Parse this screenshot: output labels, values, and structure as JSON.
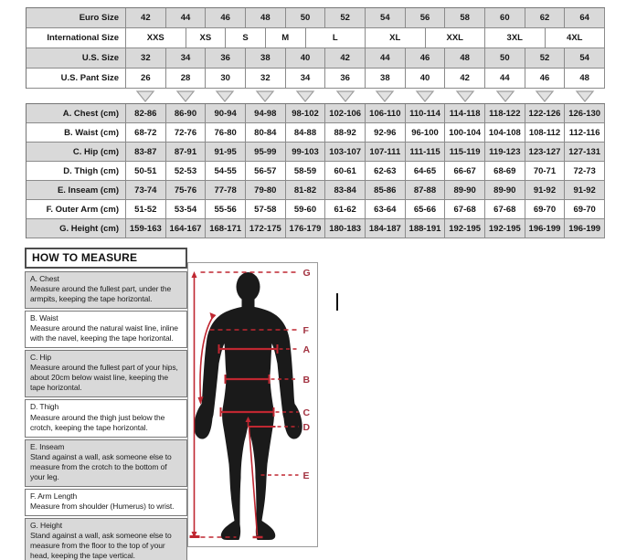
{
  "size_table": {
    "rows": [
      {
        "label": "Euro Size",
        "values": [
          "42",
          "44",
          "46",
          "48",
          "50",
          "52",
          "54",
          "56",
          "58",
          "60",
          "62",
          "64"
        ]
      },
      {
        "label": "International Size",
        "values": [
          "XXS",
          "XS",
          "S",
          "M",
          "L",
          "XL",
          "XXL",
          "3XL",
          "4XL"
        ],
        "spans": [
          3,
          2,
          2,
          2,
          3,
          3,
          3,
          3,
          3
        ]
      },
      {
        "label": "U.S. Size",
        "values": [
          "32",
          "34",
          "36",
          "38",
          "40",
          "42",
          "44",
          "46",
          "48",
          "50",
          "52",
          "54"
        ]
      },
      {
        "label": "U.S. Pant Size",
        "values": [
          "26",
          "28",
          "30",
          "32",
          "34",
          "36",
          "38",
          "40",
          "42",
          "44",
          "46",
          "48"
        ]
      }
    ]
  },
  "measurement_table": {
    "rows": [
      {
        "label": "A. Chest (cm)",
        "values": [
          "82-86",
          "86-90",
          "90-94",
          "94-98",
          "98-102",
          "102-106",
          "106-110",
          "110-114",
          "114-118",
          "118-122",
          "122-126",
          "126-130"
        ]
      },
      {
        "label": "B. Waist (cm)",
        "values": [
          "68-72",
          "72-76",
          "76-80",
          "80-84",
          "84-88",
          "88-92",
          "92-96",
          "96-100",
          "100-104",
          "104-108",
          "108-112",
          "112-116"
        ]
      },
      {
        "label": "C. Hip (cm)",
        "values": [
          "83-87",
          "87-91",
          "91-95",
          "95-99",
          "99-103",
          "103-107",
          "107-111",
          "111-115",
          "115-119",
          "119-123",
          "123-127",
          "127-131"
        ]
      },
      {
        "label": "D. Thigh (cm)",
        "values": [
          "50-51",
          "52-53",
          "54-55",
          "56-57",
          "58-59",
          "60-61",
          "62-63",
          "64-65",
          "66-67",
          "68-69",
          "70-71",
          "72-73"
        ]
      },
      {
        "label": "E. Inseam (cm)",
        "values": [
          "73-74",
          "75-76",
          "77-78",
          "79-80",
          "81-82",
          "83-84",
          "85-86",
          "87-88",
          "89-90",
          "89-90",
          "91-92",
          "91-92"
        ]
      },
      {
        "label": "F. Outer Arm (cm)",
        "values": [
          "51-52",
          "53-54",
          "55-56",
          "57-58",
          "59-60",
          "61-62",
          "63-64",
          "65-66",
          "67-68",
          "67-68",
          "69-70",
          "69-70"
        ]
      },
      {
        "label": "G. Height (cm)",
        "values": [
          "159-163",
          "164-167",
          "168-171",
          "172-175",
          "176-179",
          "180-183",
          "184-187",
          "188-191",
          "192-195",
          "192-195",
          "196-199",
          "196-199"
        ]
      }
    ]
  },
  "how_to_measure": {
    "title": "HOW TO MEASURE",
    "sections": [
      {
        "label": "A. Chest",
        "text": "Measure around the fullest part, under the armpits, keeping the tape horizontal."
      },
      {
        "label": "B. Waist",
        "text": "Measure around the natural waist line, inline with the navel, keeping the tape horizontal."
      },
      {
        "label": "C. Hip",
        "text": "Measure around the fullest part of your hips, about 20cm below waist line, keeping the tape horizontal."
      },
      {
        "label": "D. Thigh",
        "text": "Measure around the thigh just below the crotch, keeping the tape horizontal."
      },
      {
        "label": "E. Inseam",
        "text": "Stand against a wall, ask someone else to measure from the crotch to the bottom of your leg."
      },
      {
        "label": "F. Arm Length",
        "text": "Measure from shoulder (Humerus) to wrist."
      },
      {
        "label": "G. Height",
        "text": "Stand against a wall, ask someone else to measure from the floor to the top of your head, keeping the tape vertical."
      }
    ],
    "figure_labels": [
      "G",
      "F",
      "A",
      "B",
      "C",
      "D",
      "E"
    ]
  },
  "colors": {
    "row_shade": "#d9d9d9",
    "table_border": "#8b8b8b",
    "measure_line": "#bf2731",
    "figure_label_red": "#a23240",
    "silhouette": "#1a1a1a",
    "triangle_fill": "#e2e2e2"
  }
}
